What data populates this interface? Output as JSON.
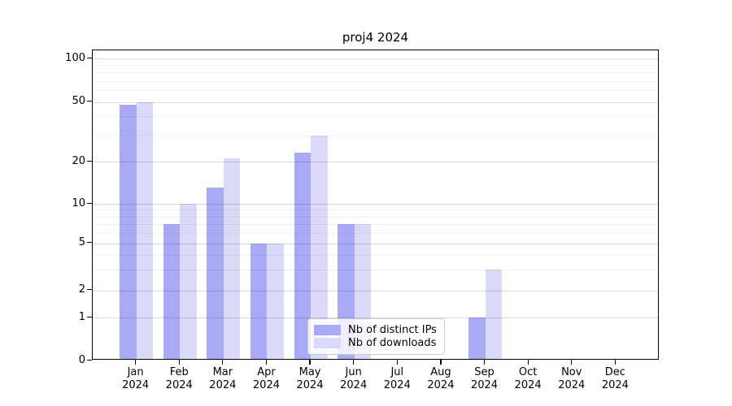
{
  "title": "proj4 2024",
  "year_label": "2024",
  "colors": {
    "distinct_ips": "#a9a9f6",
    "downloads": "#d9d9f8",
    "spine": "#000000",
    "legend_border": "#cccccc"
  },
  "y_axis": {
    "tick_labels": [
      "100",
      "50",
      "20",
      "10",
      "5",
      "2",
      "1",
      "0"
    ],
    "tick_values": [
      100,
      50,
      20,
      10,
      5,
      2,
      1,
      0
    ],
    "minor_values": [
      3,
      4,
      6,
      7,
      8,
      9,
      30,
      40,
      60,
      70,
      80,
      90
    ]
  },
  "legend": {
    "items": [
      {
        "label": "Nb of distinct IPs",
        "color_key": "distinct_ips"
      },
      {
        "label": "Nb of downloads",
        "color_key": "downloads"
      }
    ]
  },
  "chart_data": {
    "type": "bar",
    "title": "proj4 2024",
    "categories": [
      "Jan",
      "Feb",
      "Mar",
      "Apr",
      "May",
      "Jun",
      "Jul",
      "Aug",
      "Sep",
      "Oct",
      "Nov",
      "Dec"
    ],
    "categories_year": "2024",
    "series": [
      {
        "name": "Nb of distinct IPs",
        "color_key": "distinct_ips",
        "values": [
          48,
          7,
          13,
          5,
          23,
          7,
          0,
          0,
          1,
          0,
          0,
          0
        ]
      },
      {
        "name": "Nb of downloads",
        "color_key": "downloads",
        "values": [
          50,
          10,
          21,
          5,
          30,
          7,
          0,
          0,
          3,
          0,
          0,
          0
        ]
      }
    ],
    "yscale": "log-like with linear zero segment",
    "ytick_sequence": [
      0,
      1,
      2,
      5,
      10,
      20,
      50,
      100
    ],
    "ylim": [
      0,
      100
    ],
    "grid": "on",
    "legend_position": "inside bottom-center"
  }
}
